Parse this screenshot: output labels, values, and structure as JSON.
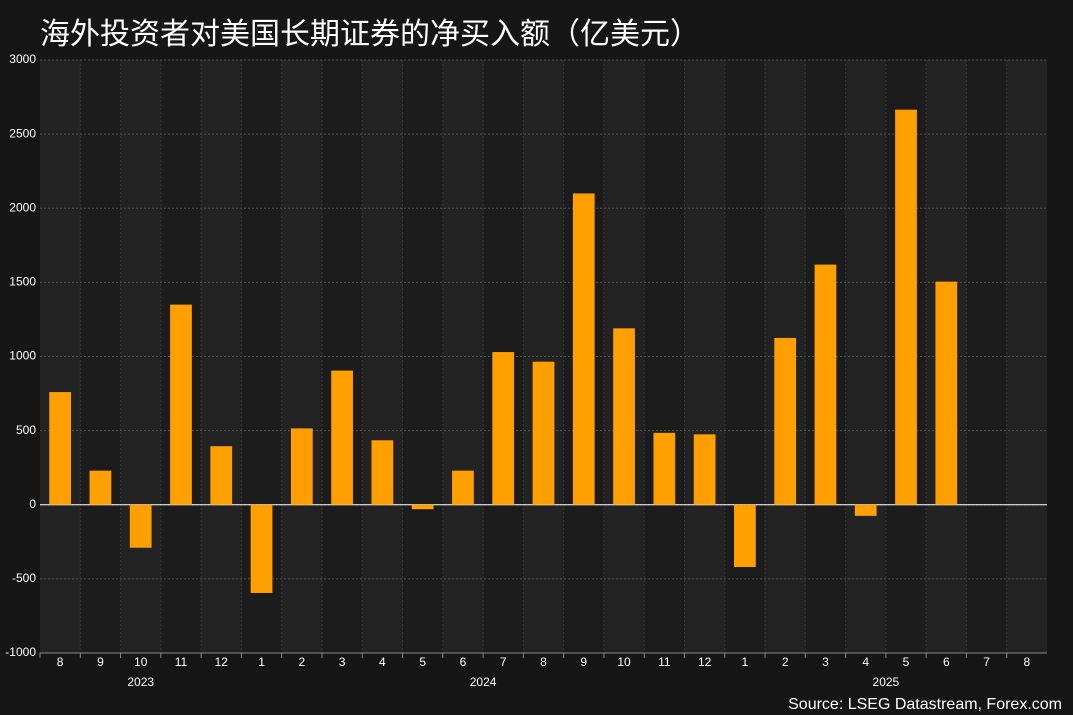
{
  "chart_data": {
    "type": "bar",
    "title": "海外投资者对美国长期证券的净买入额（亿美元）",
    "source": "Source: LSEG Datastream, Forex.com",
    "categories": [
      "8",
      "9",
      "10",
      "11",
      "12",
      "1",
      "2",
      "3",
      "4",
      "5",
      "6",
      "7",
      "8",
      "9",
      "10",
      "11",
      "12",
      "1",
      "2",
      "3",
      "4",
      "5",
      "6",
      "7",
      "8"
    ],
    "years": [
      "2023",
      "2024",
      "2025"
    ],
    "values": [
      760,
      230,
      -290,
      1350,
      395,
      -595,
      515,
      905,
      435,
      -30,
      230,
      1030,
      965,
      2100,
      1190,
      485,
      475,
      -420,
      1125,
      1620,
      -75,
      2665,
      1505,
      null,
      null
    ],
    "color": "#ff9f00",
    "ylim": [
      -1000,
      3000
    ],
    "yticks": [
      -1000,
      -500,
      0,
      500,
      1000,
      1500,
      2000,
      2500,
      3000
    ],
    "grid": true
  }
}
